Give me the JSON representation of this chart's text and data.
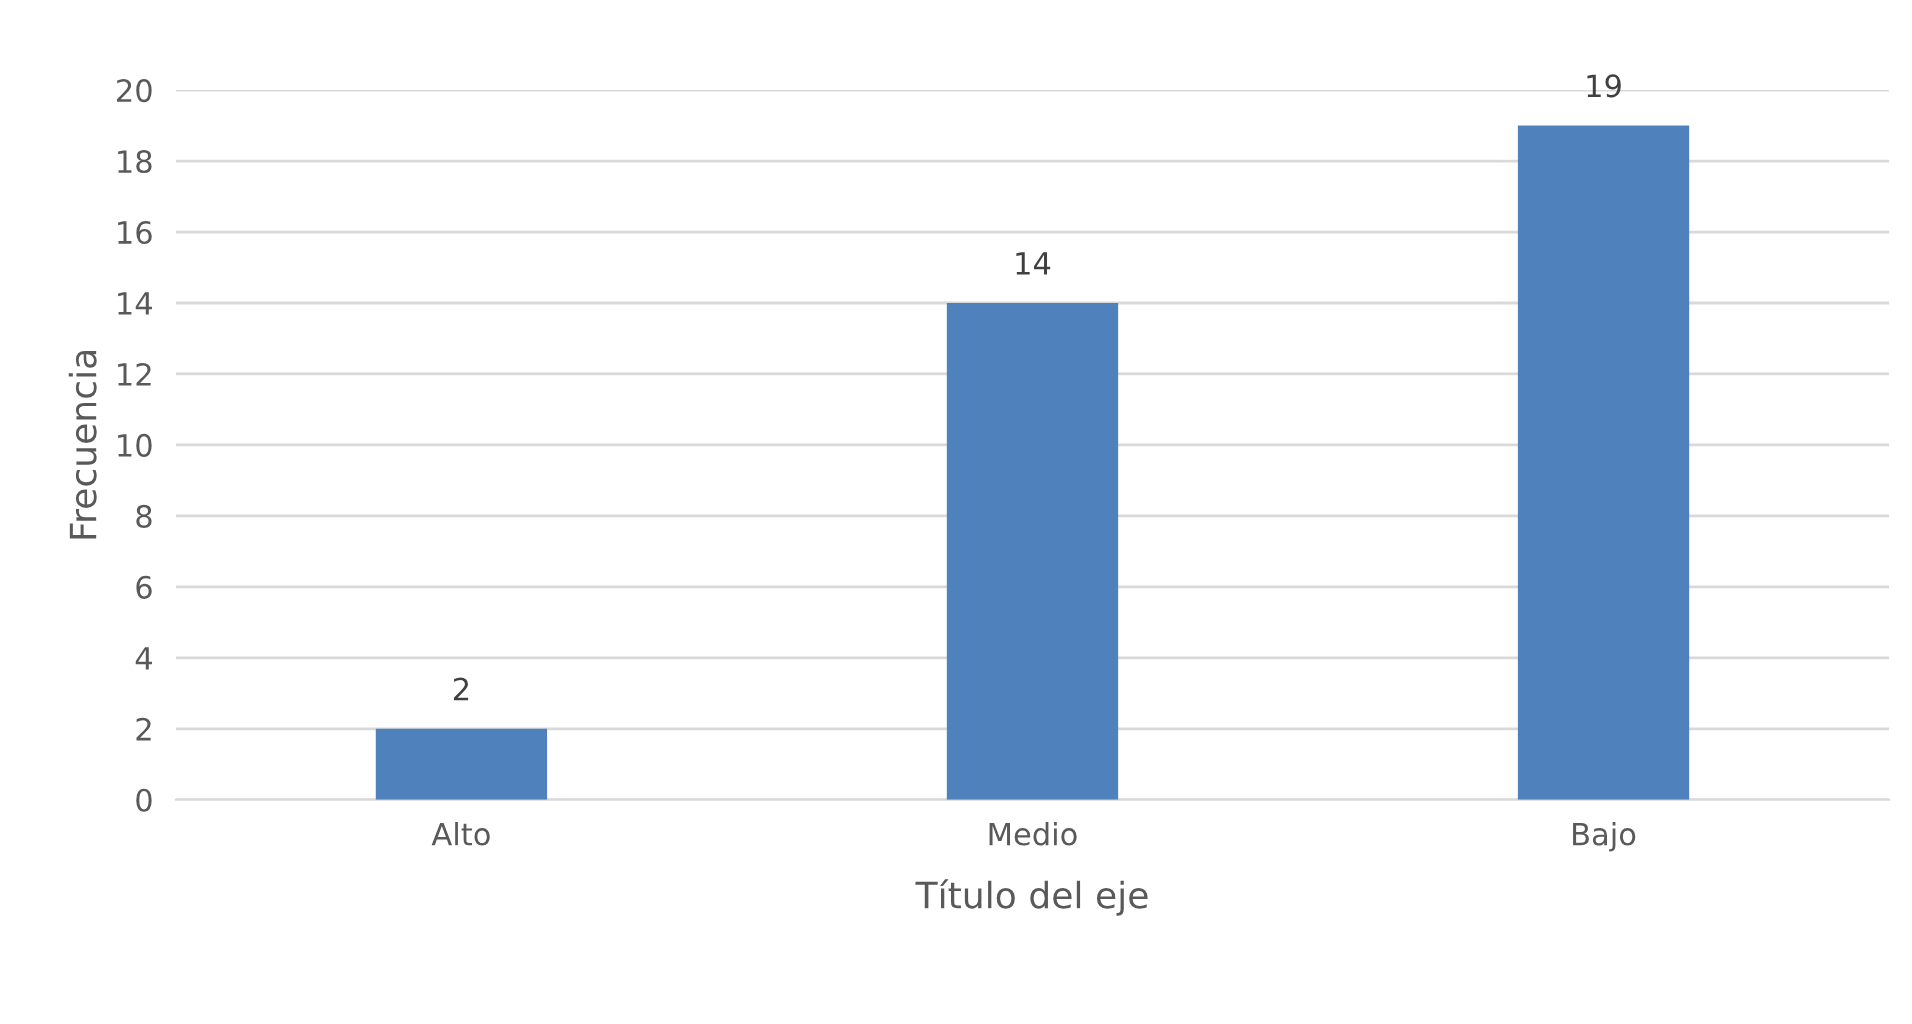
{
  "chart_data": {
    "type": "bar",
    "xlabel": "Título del eje",
    "ylabel": "Frecuencia",
    "categories": [
      "Alto",
      "Medio",
      "Bajo"
    ],
    "values": [
      2,
      14,
      19
    ],
    "color": "#4f81bd",
    "ylim": [
      0,
      20
    ],
    "yticks": [
      0,
      2,
      4,
      6,
      8,
      10,
      12,
      14,
      16,
      18,
      20
    ],
    "grid": "y",
    "data_labels": true
  }
}
